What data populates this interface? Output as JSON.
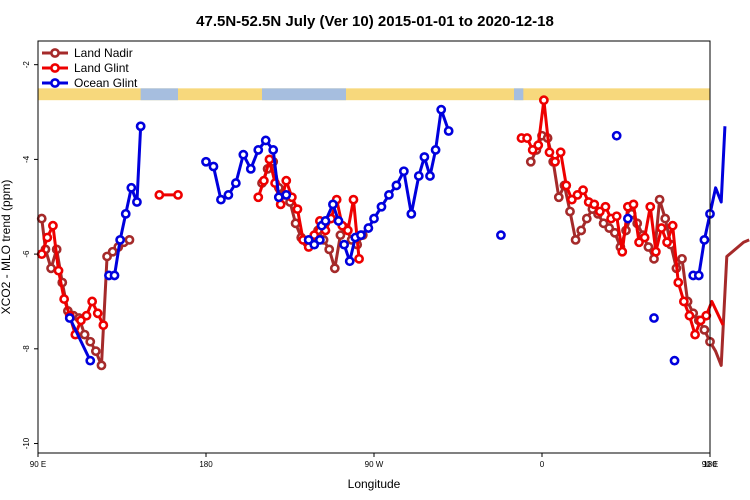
{
  "chart_data": {
    "type": "line",
    "title": "47.5N-52.5N July (Ver 10)   2015-01-01 to 2020-12-18",
    "xlabel": "Longitude",
    "ylabel": "XCO2 - MLO trend (ppm)",
    "xlim": [
      90,
      450
    ],
    "ylim": [
      -10.2,
      -1.5
    ],
    "x_ticks": [
      90,
      180,
      270,
      360,
      450,
      540
    ],
    "x_tick_labels": [
      "90 E",
      "180",
      "90 W",
      "0",
      "90 E",
      "180"
    ],
    "y_ticks": [
      -10,
      -8,
      -6,
      -4,
      -2
    ],
    "y_tick_labels": [
      "-10",
      "-8",
      "-6",
      "-4",
      "-2"
    ],
    "legend_position": "top-left",
    "land_band": {
      "land_color": "#f7d87c",
      "ocean_color": "#a6bedf",
      "y_range": [
        -2.75,
        -2.5
      ],
      "ocean_segments": [
        [
          145,
          165
        ],
        [
          210,
          255
        ],
        [
          345,
          350
        ],
        [
          470,
          503
        ]
      ]
    },
    "series": [
      {
        "name": "Land Nadir",
        "color": "#a52a2a",
        "segments": [
          [
            [
              92,
              -5.25
            ],
            [
              94,
              -5.9
            ],
            [
              97,
              -6.3
            ],
            [
              100,
              -5.9
            ],
            [
              103,
              -6.6
            ],
            [
              106,
              -7.2
            ],
            [
              109,
              -7.3
            ],
            [
              112,
              -7.35
            ],
            [
              115,
              -7.7
            ],
            [
              118,
              -7.85
            ],
            [
              121,
              -8.05
            ],
            [
              124,
              -8.35
            ],
            [
              127,
              -6.05
            ],
            [
              130,
              -5.95
            ],
            [
              133,
              -5.85
            ],
            [
              136,
              -5.75
            ],
            [
              139,
              -5.7
            ]
          ],
          [
            [
              210,
              -4.5
            ],
            [
              213,
              -4.2
            ],
            [
              216,
              -4.05
            ],
            [
              219,
              -4.6
            ],
            [
              222,
              -4.75
            ],
            [
              225,
              -4.9
            ],
            [
              228,
              -5.35
            ],
            [
              231,
              -5.65
            ],
            [
              234,
              -5.75
            ],
            [
              237,
              -5.75
            ],
            [
              240,
              -5.5
            ],
            [
              243,
              -5.7
            ],
            [
              246,
              -5.9
            ],
            [
              249,
              -6.3
            ],
            [
              252,
              -5.6
            ],
            [
              255,
              -5.45
            ],
            [
              258,
              -5.7
            ],
            [
              261,
              -5.8
            ],
            [
              264,
              -5.6
            ]
          ],
          [
            [
              354,
              -4.05
            ],
            [
              357,
              -3.8
            ],
            [
              360,
              -3.5
            ],
            [
              363,
              -3.55
            ],
            [
              366,
              -4.05
            ],
            [
              369,
              -4.8
            ],
            [
              372,
              -4.55
            ],
            [
              375,
              -5.1
            ],
            [
              378,
              -5.7
            ],
            [
              381,
              -5.5
            ],
            [
              384,
              -5.25
            ],
            [
              387,
              -5.05
            ],
            [
              390,
              -5.15
            ],
            [
              393,
              -5.35
            ],
            [
              396,
              -5.45
            ],
            [
              399,
              -5.55
            ],
            [
              402,
              -5.85
            ],
            [
              405,
              -5.5
            ],
            [
              408,
              -5.15
            ],
            [
              411,
              -5.35
            ],
            [
              414,
              -5.6
            ],
            [
              417,
              -5.85
            ],
            [
              420,
              -6.1
            ],
            [
              423,
              -4.85
            ],
            [
              426,
              -5.25
            ],
            [
              429,
              -5.8
            ],
            [
              432,
              -6.3
            ],
            [
              435,
              -6.1
            ],
            [
              438,
              -7.0
            ],
            [
              441,
              -7.25
            ],
            [
              444,
              -7.4
            ],
            [
              447,
              -7.6
            ],
            [
              450,
              -7.85
            ],
            [
              453,
              -8.05
            ],
            [
              456,
              -8.35
            ],
            [
              459,
              -6.05
            ],
            [
              462,
              -5.95
            ],
            [
              465,
              -5.85
            ],
            [
              468,
              -5.75
            ],
            [
              471,
              -5.7
            ]
          ]
        ]
      },
      {
        "name": "Land Glint",
        "color": "#ee0000",
        "segments": [
          [
            [
              92,
              -6.0
            ],
            [
              95,
              -5.65
            ],
            [
              98,
              -5.4
            ],
            [
              101,
              -6.35
            ],
            [
              104,
              -6.95
            ],
            [
              107,
              -7.3
            ],
            [
              110,
              -7.7
            ],
            [
              113,
              -7.4
            ],
            [
              116,
              -7.3
            ],
            [
              119,
              -7.0
            ],
            [
              122,
              -7.25
            ],
            [
              125,
              -7.5
            ]
          ],
          [
            [
              155,
              -4.75
            ],
            [
              165,
              -4.75
            ]
          ],
          [
            [
              208,
              -4.8
            ],
            [
              211,
              -4.45
            ],
            [
              214,
              -4.0
            ],
            [
              217,
              -4.5
            ],
            [
              220,
              -4.95
            ],
            [
              223,
              -4.45
            ],
            [
              226,
              -4.8
            ],
            [
              229,
              -5.05
            ],
            [
              232,
              -5.7
            ],
            [
              235,
              -5.85
            ],
            [
              238,
              -5.6
            ],
            [
              241,
              -5.3
            ],
            [
              244,
              -5.5
            ],
            [
              247,
              -5.25
            ],
            [
              250,
              -4.85
            ],
            [
              253,
              -5.4
            ],
            [
              256,
              -5.5
            ],
            [
              259,
              -4.85
            ],
            [
              262,
              -6.1
            ]
          ],
          [
            [
              349,
              -3.55
            ],
            [
              352,
              -3.55
            ],
            [
              355,
              -3.8
            ],
            [
              358,
              -3.7
            ],
            [
              361,
              -2.75
            ],
            [
              364,
              -3.85
            ],
            [
              367,
              -4.05
            ],
            [
              370,
              -3.85
            ],
            [
              373,
              -4.55
            ],
            [
              376,
              -4.85
            ],
            [
              379,
              -4.75
            ],
            [
              382,
              -4.65
            ],
            [
              385,
              -4.9
            ],
            [
              388,
              -4.95
            ],
            [
              391,
              -5.1
            ],
            [
              394,
              -5.0
            ],
            [
              397,
              -5.25
            ],
            [
              400,
              -5.2
            ],
            [
              403,
              -5.95
            ],
            [
              406,
              -5.0
            ],
            [
              409,
              -4.95
            ],
            [
              412,
              -5.75
            ],
            [
              415,
              -5.65
            ],
            [
              418,
              -5.0
            ],
            [
              421,
              -5.95
            ],
            [
              424,
              -5.45
            ],
            [
              427,
              -5.75
            ],
            [
              430,
              -5.4
            ],
            [
              433,
              -6.6
            ],
            [
              436,
              -7.0
            ],
            [
              439,
              -7.3
            ],
            [
              442,
              -7.7
            ],
            [
              445,
              -7.4
            ],
            [
              448,
              -7.3
            ],
            [
              451,
              -7.0
            ],
            [
              454,
              -7.25
            ],
            [
              457,
              -7.5
            ]
          ],
          [
            [
              467,
              -4.75
            ]
          ]
        ]
      },
      {
        "name": "Ocean Glint",
        "color": "#0000dd",
        "segments": [
          [
            [
              107,
              -7.35
            ],
            [
              118,
              -8.25
            ]
          ],
          [
            [
              128,
              -6.45
            ],
            [
              131,
              -6.45
            ],
            [
              134,
              -5.7
            ],
            [
              137,
              -5.15
            ],
            [
              140,
              -4.6
            ],
            [
              143,
              -4.9
            ],
            [
              145,
              -3.3
            ]
          ],
          [
            [
              180,
              -4.05
            ],
            [
              184,
              -4.15
            ],
            [
              188,
              -4.85
            ],
            [
              192,
              -4.75
            ],
            [
              196,
              -4.5
            ],
            [
              200,
              -3.9
            ],
            [
              204,
              -4.2
            ],
            [
              208,
              -3.8
            ],
            [
              212,
              -3.6
            ],
            [
              216,
              -3.8
            ],
            [
              219,
              -4.8
            ],
            [
              223,
              -4.75
            ]
          ],
          [
            [
              263,
              -5.6
            ],
            [
              267,
              -5.45
            ],
            [
              270,
              -5.25
            ],
            [
              274,
              -5.0
            ],
            [
              278,
              -4.75
            ],
            [
              282,
              -4.55
            ],
            [
              286,
              -4.25
            ],
            [
              290,
              -5.15
            ],
            [
              294,
              -4.35
            ],
            [
              297,
              -3.95
            ],
            [
              300,
              -4.35
            ],
            [
              303,
              -3.8
            ],
            [
              306,
              -2.95
            ],
            [
              310,
              -3.4
            ]
          ],
          [
            [
              242,
              -5.4
            ],
            [
              244,
              -5.3
            ],
            [
              248,
              -4.95
            ],
            [
              251,
              -5.3
            ]
          ],
          [
            [
              235,
              -5.7
            ],
            [
              238,
              -5.8
            ],
            [
              241,
              -5.7
            ]
          ],
          [
            [
              254,
              -5.8
            ],
            [
              257,
              -6.15
            ],
            [
              260,
              -5.65
            ],
            [
              263,
              -5.6
            ]
          ],
          [
            [
              338,
              -5.6
            ]
          ],
          [
            [
              400,
              -3.5
            ]
          ],
          [
            [
              406,
              -5.25
            ]
          ],
          [
            [
              420,
              -7.35
            ]
          ],
          [
            [
              431,
              -8.25
            ]
          ],
          [
            [
              441,
              -6.45
            ],
            [
              444,
              -6.45
            ],
            [
              447,
              -5.7
            ],
            [
              450,
              -5.15
            ],
            [
              453,
              -4.6
            ],
            [
              456,
              -4.9
            ],
            [
              458,
              -3.3
            ]
          ]
        ]
      }
    ]
  }
}
